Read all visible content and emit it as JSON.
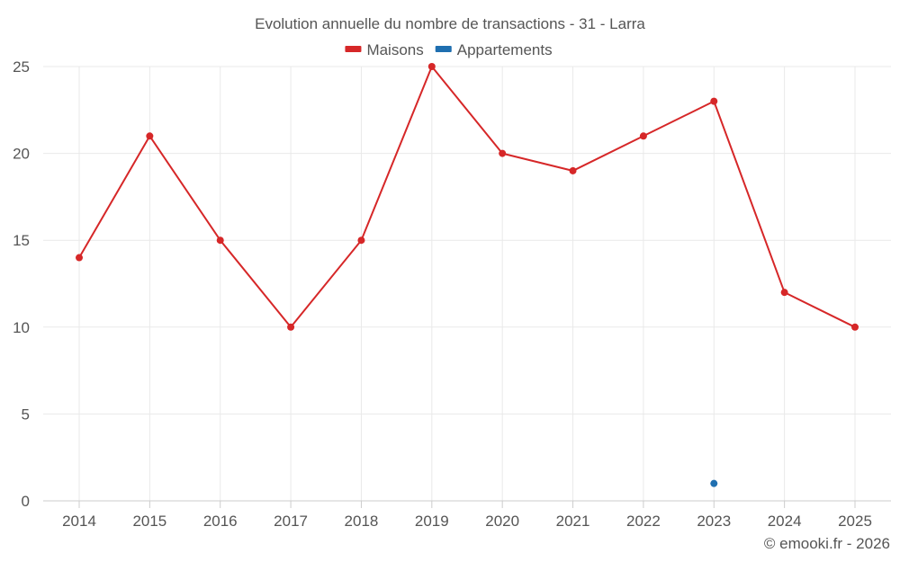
{
  "chart_data": {
    "type": "line",
    "title": "Evolution annuelle du nombre de transactions - 31 - Larra",
    "categories": [
      "2014",
      "2015",
      "2016",
      "2017",
      "2018",
      "2019",
      "2020",
      "2021",
      "2022",
      "2023",
      "2024",
      "2025"
    ],
    "series": [
      {
        "name": "Maisons",
        "color": "#d62728",
        "values": [
          14,
          21,
          15,
          10,
          15,
          25,
          20,
          19,
          21,
          23,
          12,
          10
        ]
      },
      {
        "name": "Appartements",
        "color": "#1f6fb0",
        "values": [
          null,
          null,
          null,
          null,
          null,
          null,
          null,
          null,
          null,
          1,
          null,
          null
        ]
      }
    ],
    "ylim": [
      0,
      25
    ],
    "yticks": [
      0,
      5,
      10,
      15,
      20,
      25
    ],
    "xlabel": "",
    "ylabel": "",
    "grid": true,
    "legend_position": "top-center"
  },
  "footer": {
    "credit": "© emooki.fr - 2026"
  }
}
